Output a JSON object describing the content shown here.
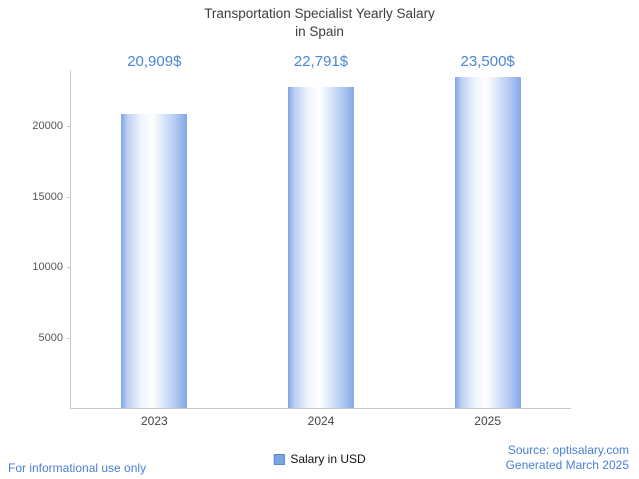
{
  "title": {
    "line1": "Transportation Specialist Yearly Salary",
    "line2": "in Spain"
  },
  "chart_data": {
    "type": "bar",
    "title": "Transportation Specialist Yearly Salary in Spain",
    "categories": [
      "2023",
      "2024",
      "2025"
    ],
    "values": [
      20909,
      22791,
      23500
    ],
    "value_labels": [
      "20,909$",
      "22,791$",
      "23,500$"
    ],
    "series": [
      {
        "name": "Salary in USD",
        "values": [
          20909,
          22791,
          23500
        ]
      }
    ],
    "xlabel": "",
    "ylabel": "",
    "ylim": [
      0,
      24000
    ],
    "yticks": [
      5000,
      10000,
      15000,
      20000
    ],
    "grid": false,
    "legend": [
      "Salary in USD"
    ],
    "legend_position": "bottom"
  },
  "legend": {
    "label": "Salary in USD"
  },
  "footer": {
    "disclaimer": "For informational use only",
    "source": "Source: optisalary.com",
    "generated": "Generated March 2025"
  },
  "colors": {
    "accent": "#4a86d8",
    "link": "#4a7fd4",
    "bar_left": "#7fa4e4",
    "bar_center": "#ffffff",
    "bar_right": "#84a8e8",
    "axis": "#c9c9c9",
    "title_text": "#3d3d3d",
    "tick_text": "#555555"
  }
}
